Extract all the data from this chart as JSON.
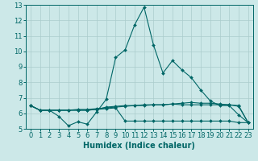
{
  "xlabel": "Humidex (Indice chaleur)",
  "bg_color": "#cce8e8",
  "line_color": "#006666",
  "grid_color": "#aacccc",
  "xlim": [
    -0.5,
    23.5
  ],
  "ylim": [
    5.0,
    13.0
  ],
  "yticks": [
    5,
    6,
    7,
    8,
    9,
    10,
    11,
    12,
    13
  ],
  "xticks": [
    0,
    1,
    2,
    3,
    4,
    5,
    6,
    7,
    8,
    9,
    10,
    11,
    12,
    13,
    14,
    15,
    16,
    17,
    18,
    19,
    20,
    21,
    22,
    23
  ],
  "line1": [
    6.5,
    6.2,
    6.2,
    5.8,
    5.2,
    5.45,
    5.3,
    6.1,
    6.9,
    9.6,
    10.1,
    11.7,
    12.85,
    10.4,
    8.6,
    9.4,
    8.8,
    8.3,
    7.5,
    6.8,
    6.5,
    6.5,
    5.9,
    5.4
  ],
  "line2": [
    6.5,
    6.2,
    6.2,
    6.2,
    6.2,
    6.25,
    6.25,
    6.3,
    6.35,
    6.4,
    6.45,
    6.5,
    6.5,
    6.55,
    6.55,
    6.6,
    6.65,
    6.7,
    6.65,
    6.65,
    6.6,
    6.55,
    6.45,
    5.4
  ],
  "line3": [
    6.5,
    6.2,
    6.2,
    6.2,
    6.2,
    6.2,
    6.2,
    6.25,
    6.3,
    6.35,
    5.5,
    5.5,
    5.5,
    5.5,
    5.5,
    5.5,
    5.5,
    5.5,
    5.5,
    5.5,
    5.5,
    5.5,
    5.4,
    5.4
  ],
  "line4": [
    6.5,
    6.2,
    6.2,
    6.2,
    6.2,
    6.2,
    6.2,
    6.25,
    6.4,
    6.45,
    6.5,
    6.5,
    6.55,
    6.55,
    6.55,
    6.6,
    6.55,
    6.55,
    6.55,
    6.55,
    6.55,
    6.55,
    6.5,
    5.4
  ],
  "tick_fontsize": 6,
  "xlabel_fontsize": 7
}
